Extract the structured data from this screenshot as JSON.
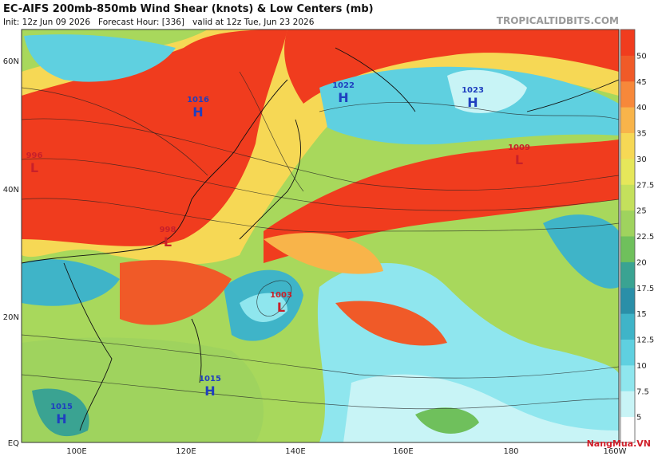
{
  "header": {
    "title": "EC-AIFS 200mb-850mb Wind Shear (knots) & Low Centers (mb)",
    "subtitle": "Init: 12z Jun 09 2026   Forecast Hour: [336]   valid at 12z Tue, Jun 23 2026",
    "brand": "TROPICALTIDBITS.COM"
  },
  "map": {
    "lat_labels": [
      "60N",
      "40N",
      "20N",
      "EQ"
    ],
    "lon_labels": [
      "100E",
      "120E",
      "140E",
      "160E",
      "180",
      "160W"
    ],
    "centers": [
      {
        "letter": "H",
        "pressure": "1016"
      },
      {
        "letter": "H",
        "pressure": "1022"
      },
      {
        "letter": "H",
        "pressure": "1023"
      },
      {
        "letter": "L",
        "pressure": "1009"
      },
      {
        "letter": "L",
        "pressure": "996"
      },
      {
        "letter": "L",
        "pressure": "998"
      },
      {
        "letter": "L",
        "pressure": "1003"
      },
      {
        "letter": "H",
        "pressure": "1015"
      },
      {
        "letter": "H",
        "pressure": "1015"
      }
    ]
  },
  "colorbar": {
    "ticks": [
      5,
      7.5,
      10,
      12.5,
      15,
      17.5,
      20,
      22.5,
      25,
      27.5,
      30,
      35,
      40,
      45,
      50
    ]
  },
  "watermark": "NangMua.VN"
}
